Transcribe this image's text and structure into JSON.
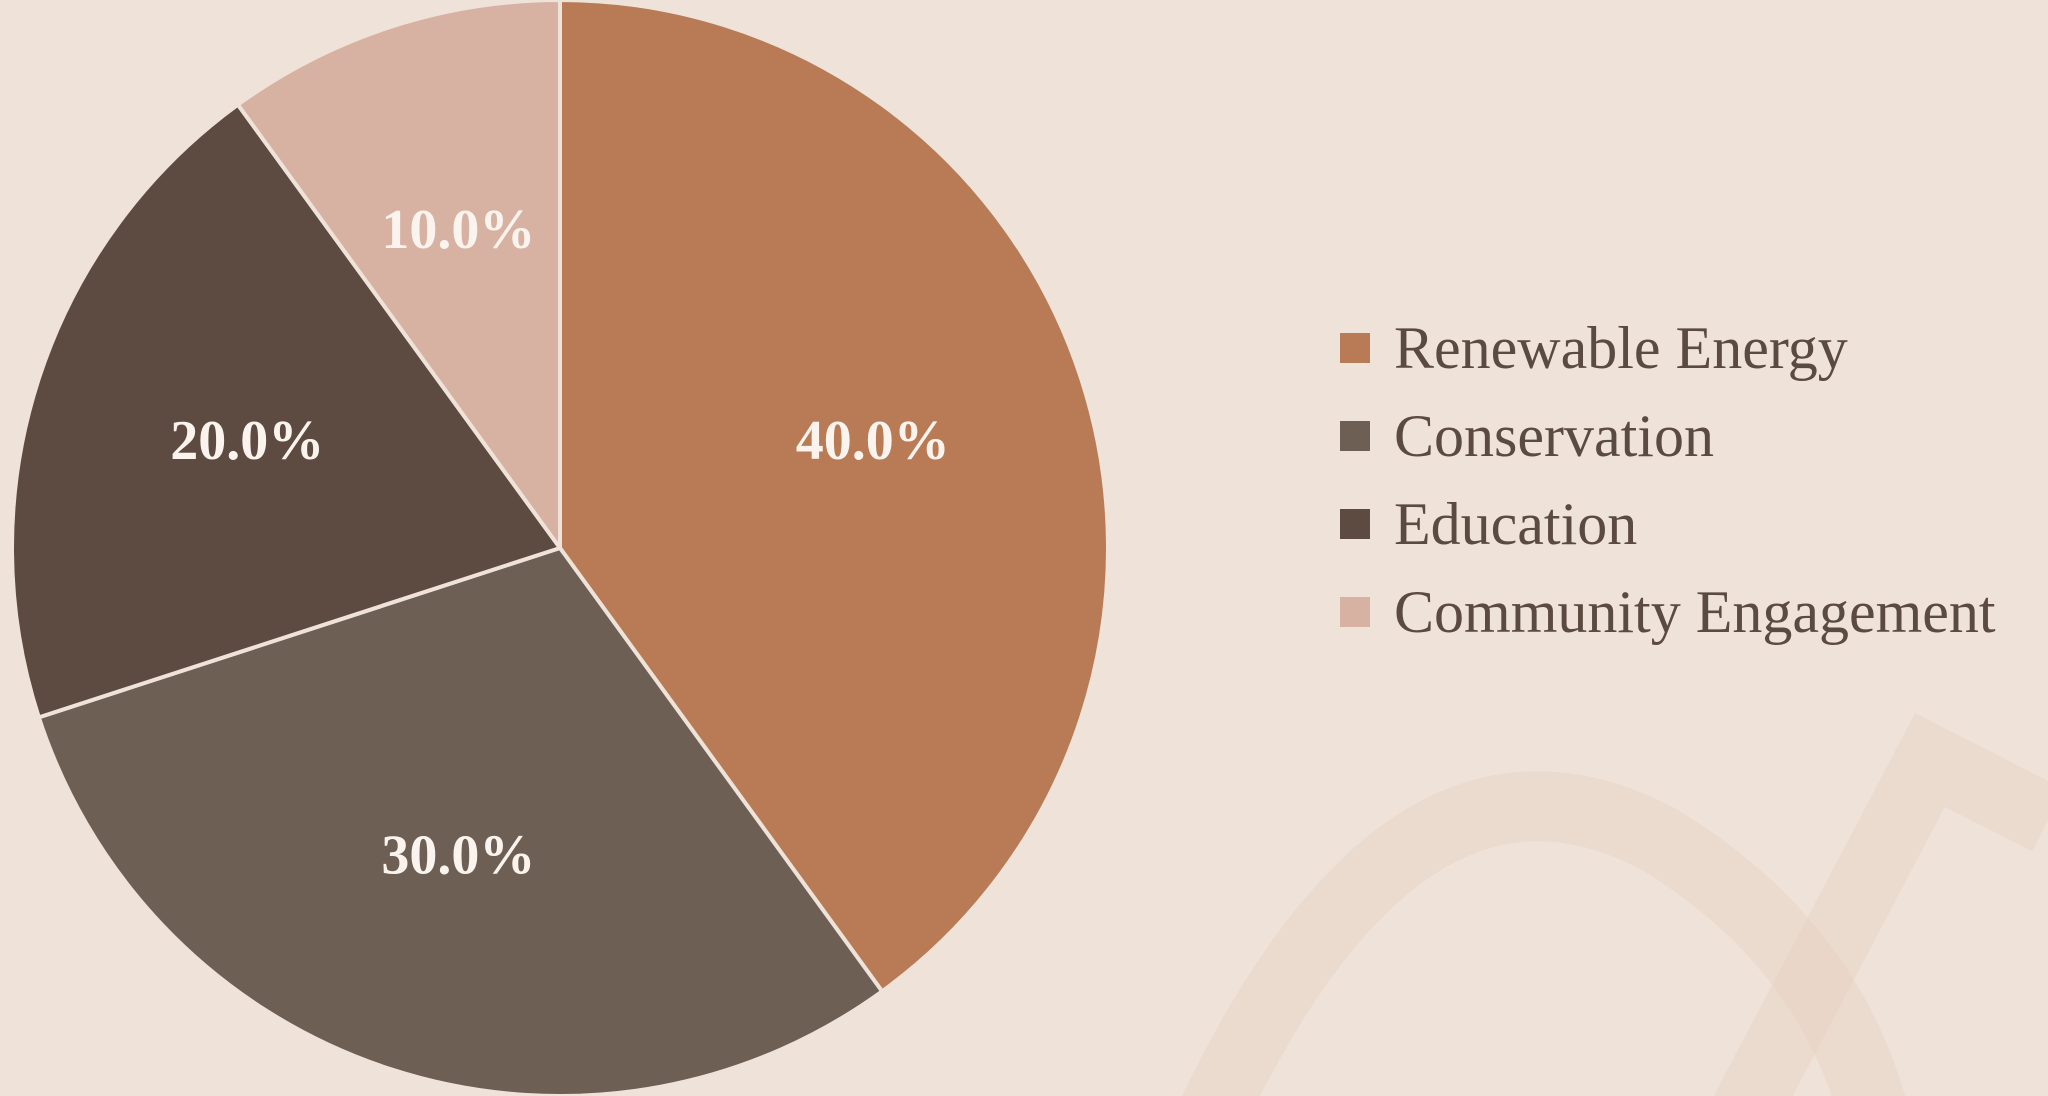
{
  "colors": {
    "background": "#efe3d9",
    "slice_border": "#efe3d9"
  },
  "chart_data": {
    "type": "pie",
    "title": "",
    "categories": [
      "Renewable Energy",
      "Conservation",
      "Education",
      "Community Engagement"
    ],
    "values": [
      40.0,
      30.0,
      20.0,
      10.0
    ],
    "labels": [
      "40.0%",
      "30.0%",
      "20.0%",
      "10.0%"
    ],
    "colors": [
      "#b87b55",
      "#6e5f55",
      "#5d4a40",
      "#d7b1a1"
    ],
    "start_angle": "12 o'clock",
    "direction": "clockwise",
    "legend_position": "right"
  }
}
